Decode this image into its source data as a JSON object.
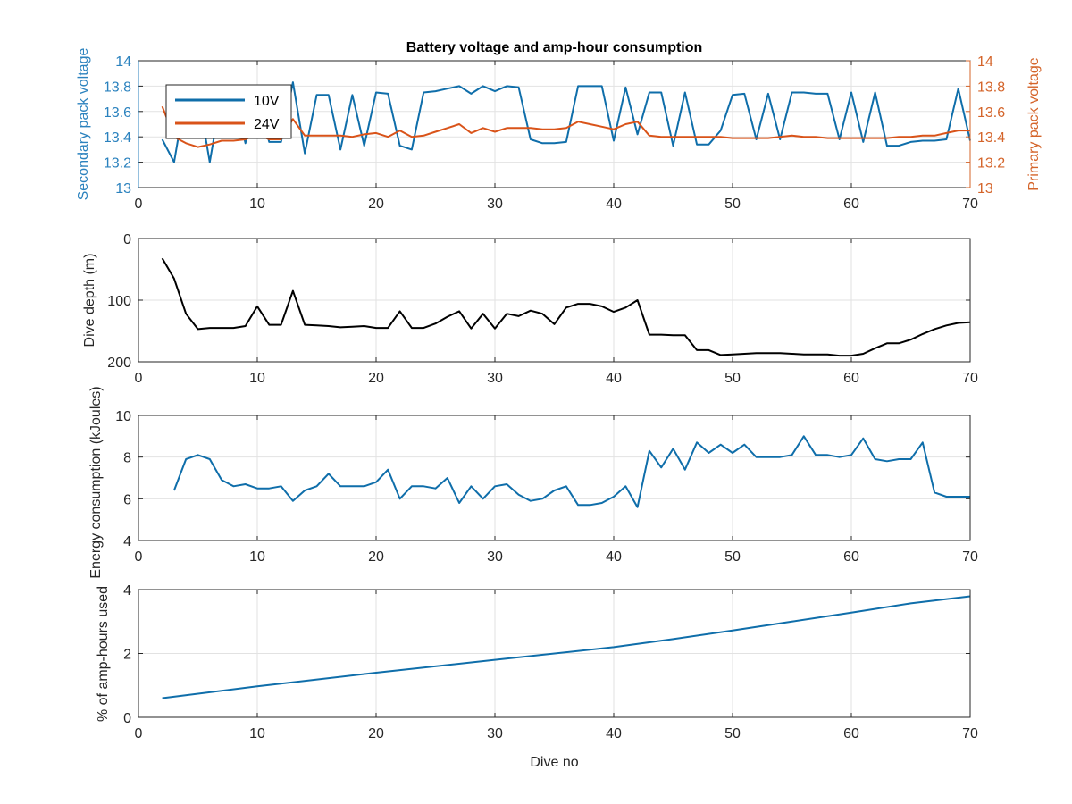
{
  "chart_data": [
    {
      "type": "line",
      "title": "Battery voltage and amp-hour consumption",
      "xlabel": "",
      "ylabel": "Secondary pack voltage",
      "ylabel_right": "Primary pack voltage",
      "xlim": [
        0,
        70
      ],
      "ylim": [
        13,
        14
      ],
      "ylim_right": [
        13,
        14
      ],
      "xticks": [
        0,
        10,
        20,
        30,
        40,
        50,
        60,
        70
      ],
      "yticks": [
        13,
        13.2,
        13.4,
        13.6,
        13.8,
        14
      ],
      "ytick_labels": [
        "13",
        "13.2",
        "13.4",
        "13.6",
        "13.8",
        "14"
      ],
      "yticks_right": [
        13,
        13.2,
        13.4,
        13.6,
        13.8,
        14
      ],
      "ytick_labels_right": [
        "13",
        "13.2",
        "13.4",
        "13.6",
        "13.8",
        "14"
      ],
      "grid": true,
      "legend_position": "top-left",
      "colors": {
        "left_axis": "#2b82be",
        "right_axis": "#d4642a"
      },
      "series": [
        {
          "name": "10V",
          "axis": "left",
          "color": "#0f6eaa",
          "x": [
            2,
            3,
            4,
            5,
            6,
            7,
            8,
            9,
            10,
            11,
            12,
            13,
            14,
            15,
            16,
            17,
            18,
            19,
            20,
            21,
            22,
            23,
            24,
            25,
            26,
            27,
            28,
            29,
            30,
            31,
            32,
            33,
            34,
            35,
            36,
            37,
            38,
            39,
            40,
            41,
            42,
            43,
            44,
            45,
            46,
            47,
            48,
            49,
            50,
            51,
            52,
            53,
            54,
            55,
            56,
            57,
            58,
            59,
            60,
            61,
            62,
            63,
            64,
            65,
            66,
            67,
            68,
            69,
            70
          ],
          "y": [
            13.38,
            13.2,
            13.75,
            13.75,
            13.2,
            13.75,
            13.75,
            13.35,
            13.74,
            13.36,
            13.36,
            13.83,
            13.27,
            13.73,
            13.73,
            13.3,
            13.73,
            13.33,
            13.75,
            13.74,
            13.33,
            13.3,
            13.75,
            13.76,
            13.78,
            13.8,
            13.74,
            13.8,
            13.76,
            13.8,
            13.79,
            13.38,
            13.35,
            13.35,
            13.36,
            13.8,
            13.8,
            13.8,
            13.37,
            13.79,
            13.42,
            13.75,
            13.75,
            13.33,
            13.75,
            13.34,
            13.34,
            13.45,
            13.73,
            13.74,
            13.38,
            13.74,
            13.38,
            13.75,
            13.75,
            13.74,
            13.74,
            13.38,
            13.75,
            13.36,
            13.75,
            13.33,
            13.33,
            13.36,
            13.37,
            13.37,
            13.38,
            13.78,
            13.37
          ]
        },
        {
          "name": "24V",
          "axis": "right",
          "color": "#d95319",
          "x": [
            2,
            3,
            4,
            5,
            6,
            7,
            8,
            9,
            10,
            11,
            12,
            13,
            14,
            15,
            16,
            17,
            18,
            19,
            20,
            21,
            22,
            23,
            24,
            25,
            26,
            27,
            28,
            29,
            30,
            31,
            32,
            33,
            34,
            35,
            36,
            37,
            38,
            39,
            40,
            41,
            42,
            43,
            44,
            45,
            46,
            47,
            48,
            49,
            50,
            51,
            52,
            53,
            54,
            55,
            56,
            57,
            58,
            59,
            60,
            61,
            62,
            63,
            64,
            65,
            66,
            67,
            68,
            69,
            70
          ],
          "y": [
            13.64,
            13.4,
            13.35,
            13.32,
            13.34,
            13.37,
            13.37,
            13.38,
            13.42,
            13.38,
            13.38,
            13.54,
            13.41,
            13.41,
            13.41,
            13.41,
            13.4,
            13.42,
            13.43,
            13.4,
            13.45,
            13.4,
            13.41,
            13.44,
            13.47,
            13.5,
            13.43,
            13.47,
            13.44,
            13.47,
            13.47,
            13.47,
            13.46,
            13.46,
            13.47,
            13.52,
            13.5,
            13.48,
            13.46,
            13.5,
            13.52,
            13.41,
            13.4,
            13.4,
            13.4,
            13.4,
            13.4,
            13.4,
            13.39,
            13.39,
            13.39,
            13.39,
            13.4,
            13.41,
            13.4,
            13.4,
            13.39,
            13.39,
            13.39,
            13.39,
            13.39,
            13.39,
            13.4,
            13.4,
            13.41,
            13.41,
            13.43,
            13.45,
            13.45
          ]
        }
      ]
    },
    {
      "type": "line",
      "title": "",
      "xlabel": "",
      "ylabel": "Dive depth (m)",
      "xlim": [
        0,
        70
      ],
      "ylim": [
        0,
        200
      ],
      "y_reversed": true,
      "xticks": [
        0,
        10,
        20,
        30,
        40,
        50,
        60,
        70
      ],
      "yticks": [
        0,
        100,
        200
      ],
      "ytick_labels": [
        "0",
        "100",
        "200"
      ],
      "grid": true,
      "series": [
        {
          "color": "#000000",
          "x": [
            2,
            3,
            4,
            5,
            6,
            7,
            8,
            9,
            10,
            11,
            12,
            13,
            14,
            15,
            16,
            17,
            18,
            19,
            20,
            21,
            22,
            23,
            24,
            25,
            26,
            27,
            28,
            29,
            30,
            31,
            32,
            33,
            34,
            35,
            36,
            37,
            38,
            39,
            40,
            41,
            42,
            43,
            44,
            45,
            46,
            47,
            48,
            49,
            50,
            51,
            52,
            53,
            54,
            55,
            56,
            57,
            58,
            59,
            60,
            61,
            62,
            63,
            64,
            65,
            66,
            67,
            68,
            69,
            70
          ],
          "y": [
            32,
            65,
            122,
            147,
            145,
            145,
            145,
            142,
            110,
            140,
            140,
            85,
            140,
            141,
            142,
            144,
            143,
            142,
            145,
            145,
            118,
            145,
            145,
            138,
            127,
            118,
            146,
            122,
            146,
            122,
            126,
            117,
            122,
            139,
            112,
            106,
            106,
            110,
            119,
            112,
            100,
            156,
            156,
            157,
            157,
            181,
            181,
            189,
            188,
            187,
            186,
            186,
            186,
            187,
            188,
            188,
            188,
            190,
            190,
            187,
            178,
            170,
            170,
            164,
            155,
            147,
            141,
            137,
            136
          ]
        }
      ]
    },
    {
      "type": "line",
      "title": "",
      "xlabel": "",
      "ylabel": "Energy consumption (kJoules)",
      "xlim": [
        0,
        70
      ],
      "ylim": [
        4,
        10
      ],
      "xticks": [
        0,
        10,
        20,
        30,
        40,
        50,
        60,
        70
      ],
      "yticks": [
        4,
        6,
        8,
        10
      ],
      "ytick_labels": [
        "4",
        "6",
        "8",
        "10"
      ],
      "grid": true,
      "series": [
        {
          "color": "#0f6eaa",
          "x": [
            3,
            4,
            5,
            6,
            7,
            8,
            9,
            10,
            11,
            12,
            13,
            14,
            15,
            16,
            17,
            18,
            19,
            20,
            21,
            22,
            23,
            24,
            25,
            26,
            27,
            28,
            29,
            30,
            31,
            32,
            33,
            34,
            35,
            36,
            37,
            38,
            39,
            40,
            41,
            42,
            43,
            44,
            45,
            46,
            47,
            48,
            49,
            50,
            51,
            52,
            53,
            54,
            55,
            56,
            57,
            58,
            59,
            60,
            61,
            62,
            63,
            64,
            65,
            66,
            67,
            68,
            69,
            70
          ],
          "y": [
            6.4,
            7.9,
            8.1,
            7.9,
            6.9,
            6.6,
            6.7,
            6.5,
            6.5,
            6.6,
            5.9,
            6.4,
            6.6,
            7.2,
            6.6,
            6.6,
            6.6,
            6.8,
            7.4,
            6.0,
            6.6,
            6.6,
            6.5,
            7.0,
            5.8,
            6.6,
            6.0,
            6.6,
            6.7,
            6.2,
            5.9,
            6.0,
            6.4,
            6.6,
            5.7,
            5.7,
            5.8,
            6.1,
            6.6,
            5.6,
            8.3,
            7.5,
            8.4,
            7.4,
            8.7,
            8.2,
            8.6,
            8.2,
            8.6,
            8.0,
            8.0,
            8.0,
            8.1,
            9.0,
            8.1,
            8.1,
            8.0,
            8.1,
            8.9,
            7.9,
            7.8,
            7.9,
            7.9,
            8.7,
            6.3,
            6.1,
            6.1,
            6.1
          ]
        }
      ]
    },
    {
      "type": "line",
      "title": "",
      "xlabel": "Dive no",
      "ylabel": "% of amp-hours used",
      "xlim": [
        0,
        70
      ],
      "ylim": [
        0,
        4
      ],
      "xticks": [
        0,
        10,
        20,
        30,
        40,
        50,
        60,
        70
      ],
      "yticks": [
        0,
        2,
        4
      ],
      "ytick_labels": [
        "0",
        "2",
        "4"
      ],
      "grid": true,
      "series": [
        {
          "color": "#0f6eaa",
          "x": [
            2,
            10,
            20,
            30,
            40,
            45,
            50,
            55,
            60,
            65,
            70
          ],
          "y": [
            0.6,
            0.97,
            1.4,
            1.8,
            2.2,
            2.45,
            2.72,
            3.0,
            3.28,
            3.57,
            3.79
          ]
        }
      ]
    }
  ]
}
